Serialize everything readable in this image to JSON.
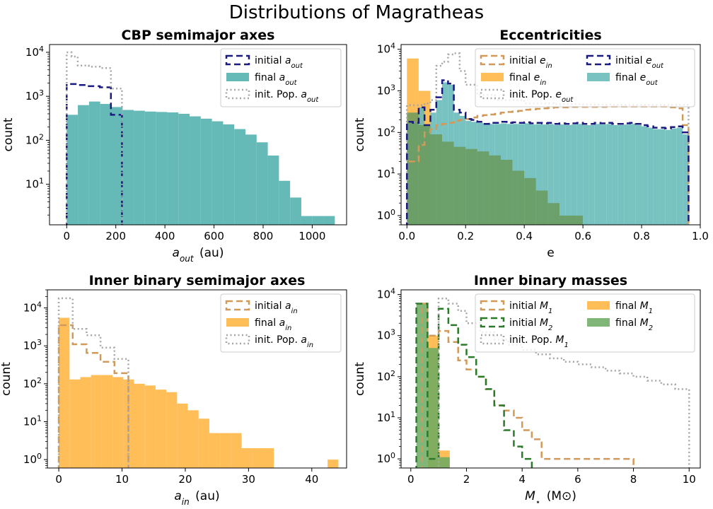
{
  "figure": {
    "suptitle": "Distributions of Magratheas"
  },
  "chart_data": [
    {
      "type": "histogram",
      "title": "CBP semimajor axes",
      "xlabel": "a_out (au)",
      "ylabel": "count",
      "yscale": "log",
      "xlim": [
        -70,
        1140
      ],
      "ylim": [
        1.2,
        15000
      ],
      "xticks": [
        0,
        200,
        400,
        600,
        800,
        1000
      ],
      "yticks": [
        10,
        100,
        1000,
        10000
      ],
      "legend_loc": "upper right",
      "legend_cols": 1,
      "series": [
        {
          "name": "initial a_out",
          "style": "step",
          "color": "#1a1a80",
          "dash": "dashed",
          "edges": [
            0,
            45,
            90,
            135,
            180,
            225
          ],
          "counts": [
            1900,
            1800,
            1700,
            1600,
            380
          ]
        },
        {
          "name": "final a_out",
          "style": "bar",
          "color": "#4aaeac",
          "edges": [
            0,
            45.5,
            91,
            136.5,
            182,
            227.5,
            273,
            318.5,
            364,
            409.5,
            455,
            500.5,
            546,
            591.5,
            637,
            682.5,
            728,
            773.5,
            819,
            864.5,
            910,
            955.5,
            1001,
            1046.5,
            1092
          ],
          "counts": [
            380,
            630,
            760,
            670,
            570,
            490,
            470,
            450,
            440,
            430,
            400,
            350,
            310,
            270,
            230,
            180,
            135,
            90,
            45,
            12,
            5,
            1.9,
            1.9,
            1.9
          ]
        },
        {
          "name": "init. Pop. a_out",
          "style": "step",
          "color": "#a6a6a6",
          "dash": "dotted",
          "edges": [
            0,
            20,
            45,
            90,
            135,
            180,
            225
          ],
          "counts": [
            10000,
            8000,
            5000,
            4700,
            4400,
            1500
          ]
        }
      ]
    },
    {
      "type": "histogram",
      "title": "Eccentricities",
      "xlabel": "e",
      "ylabel": "count",
      "yscale": "log",
      "xlim": [
        -0.02,
        1.0
      ],
      "ylim": [
        0.6,
        13000
      ],
      "xticks": [
        0.0,
        0.2,
        0.4,
        0.6,
        0.8,
        1.0
      ],
      "yticks": [
        1,
        10,
        100,
        1000,
        10000
      ],
      "legend_loc": "upper right",
      "legend_cols": 2,
      "series": [
        {
          "name": "initial e_in",
          "style": "step",
          "color": "#d19a5a",
          "dash": "dashed",
          "edges": [
            0.0,
            0.02,
            0.04,
            0.06,
            0.08,
            0.1,
            0.12,
            0.14,
            0.16,
            0.18,
            0.2,
            0.22,
            0.24,
            0.26,
            0.28,
            0.3,
            0.32,
            0.34,
            0.36,
            0.38,
            0.4,
            0.42,
            0.44,
            0.46,
            0.48,
            0.5,
            0.52,
            0.54,
            0.56,
            0.58,
            0.6,
            0.62,
            0.64,
            0.66,
            0.68,
            0.7,
            0.72,
            0.74,
            0.76,
            0.78,
            0.8,
            0.82,
            0.84,
            0.86,
            0.88,
            0.9,
            0.92,
            0.94,
            0.96
          ],
          "counts": [
            20,
            20,
            50,
            100,
            120,
            150,
            160,
            170,
            190,
            200,
            210,
            230,
            250,
            260,
            270,
            280,
            300,
            310,
            320,
            330,
            350,
            360,
            370,
            380,
            390,
            400,
            400,
            400,
            410,
            410,
            410,
            410,
            410,
            410,
            420,
            420,
            420,
            420,
            420,
            420,
            420,
            420,
            420,
            420,
            420,
            400,
            380,
            150
          ]
        },
        {
          "name": "final e_in",
          "style": "bar",
          "color": "#ffb33a",
          "edges": [
            0.0,
            0.04,
            0.08
          ],
          "counts": [
            6000,
            1000
          ]
        },
        {
          "name": "init. Pop. e_out",
          "style": "step",
          "color": "#a6a6a6",
          "dash": "dotted",
          "edges": [
            0.0,
            0.02,
            0.04,
            0.06,
            0.08,
            0.1,
            0.12,
            0.14,
            0.16,
            0.18,
            0.2,
            0.24,
            0.3,
            0.4,
            0.5,
            0.6,
            0.7,
            0.8,
            0.9,
            0.96
          ],
          "counts": [
            450,
            450,
            450,
            500,
            600,
            4000,
            5000,
            7500,
            8000,
            3000,
            1400,
            800,
            600,
            500,
            480,
            470,
            460,
            460,
            460
          ]
        },
        {
          "name": "initial e_out",
          "style": "step",
          "color": "#1a1a80",
          "dash": "dashed",
          "edges": [
            0.0,
            0.02,
            0.04,
            0.06,
            0.08,
            0.1,
            0.12,
            0.14,
            0.16,
            0.18,
            0.2,
            0.22,
            0.24,
            0.26,
            0.28,
            0.3,
            0.32,
            0.34,
            0.36,
            0.38,
            0.4,
            0.42,
            0.44,
            0.46,
            0.48,
            0.5,
            0.52,
            0.54,
            0.56,
            0.58,
            0.6,
            0.62,
            0.64,
            0.66,
            0.68,
            0.7,
            0.72,
            0.74,
            0.76,
            0.78,
            0.8,
            0.82,
            0.84,
            0.86,
            0.88,
            0.9,
            0.92,
            0.94,
            0.96
          ],
          "counts": [
            180,
            170,
            400,
            150,
            350,
            700,
            1800,
            1500,
            350,
            300,
            210,
            200,
            180,
            160,
            170,
            170,
            180,
            170,
            175,
            170,
            175,
            165,
            170,
            165,
            170,
            160,
            165,
            160,
            165,
            170,
            160,
            160,
            170,
            165,
            170,
            160,
            160,
            165,
            170,
            160,
            150,
            140,
            130,
            130,
            125,
            135,
            140,
            100
          ]
        },
        {
          "name": "final e_out",
          "style": "bar",
          "color": "#60b8b6",
          "edges": [
            0.0,
            0.02,
            0.04,
            0.06,
            0.08,
            0.1,
            0.12,
            0.14,
            0.16,
            0.18,
            0.2,
            0.22,
            0.24,
            0.26,
            0.28,
            0.3,
            0.32,
            0.34,
            0.36,
            0.38,
            0.4,
            0.42,
            0.44,
            0.46,
            0.48,
            0.5,
            0.52,
            0.54,
            0.56,
            0.58,
            0.6,
            0.62,
            0.64,
            0.66,
            0.68,
            0.7,
            0.72,
            0.74,
            0.76,
            0.78,
            0.8,
            0.82,
            0.84,
            0.86,
            0.88,
            0.9,
            0.92,
            0.94,
            0.96
          ],
          "counts": [
            170,
            170,
            400,
            140,
            300,
            600,
            1600,
            1400,
            300,
            250,
            190,
            180,
            170,
            160,
            160,
            160,
            165,
            160,
            160,
            160,
            165,
            155,
            160,
            155,
            160,
            150,
            155,
            150,
            155,
            160,
            150,
            150,
            160,
            155,
            160,
            150,
            150,
            155,
            160,
            150,
            140,
            130,
            120,
            120,
            115,
            125,
            130,
            90
          ]
        },
        {
          "name": "",
          "style": "bar",
          "color": "#6a9a5c",
          "edges": [
            0.0,
            0.04,
            0.08,
            0.12,
            0.16,
            0.2,
            0.24,
            0.28,
            0.32,
            0.36,
            0.4,
            0.44,
            0.48,
            0.52,
            0.56,
            0.6
          ],
          "counts": [
            300,
            150,
            90,
            60,
            45,
            40,
            35,
            28,
            22,
            12,
            8,
            4,
            2,
            1,
            1
          ]
        }
      ]
    },
    {
      "type": "histogram",
      "title": "Inner binary semimajor axes",
      "xlabel": "a_in (au)",
      "ylabel": "count",
      "yscale": "log",
      "xlim": [
        -1.8,
        45.5
      ],
      "ylim": [
        0.6,
        30000
      ],
      "xticks": [
        0,
        10,
        20,
        30,
        40
      ],
      "yticks": [
        1,
        10,
        100,
        1000,
        10000
      ],
      "legend_loc": "upper right",
      "legend_cols": 1,
      "series": [
        {
          "name": "initial a_in",
          "style": "step",
          "color": "#d19a5a",
          "dash": "dashed",
          "edges": [
            0,
            2.2,
            4.4,
            6.6,
            8.8,
            11
          ],
          "counts": [
            3500,
            1100,
            650,
            380,
            190
          ]
        },
        {
          "name": "final a_in",
          "style": "bar",
          "color": "#ffb33a",
          "edges": [
            0,
            1.7,
            3.4,
            5.1,
            6.8,
            8.5,
            10.2,
            11.9,
            13.6,
            15.3,
            17,
            18.7,
            20.4,
            22.1,
            23.8,
            25.5,
            27.2,
            28.9,
            30.6,
            32.3,
            34,
            35.7,
            37.4,
            39.1,
            40.8,
            42.5,
            44.2
          ],
          "counts": [
            5500,
            130,
            150,
            170,
            170,
            150,
            130,
            100,
            90,
            70,
            60,
            30,
            20,
            12,
            5,
            5,
            5,
            2,
            2,
            2,
            0,
            0,
            0,
            0,
            0,
            1
          ]
        },
        {
          "name": "init. Pop. a_in",
          "style": "step",
          "color": "#a6a6a6",
          "dash": "dotted",
          "edges": [
            0,
            2.2,
            4.4,
            6.6,
            8.8,
            11
          ],
          "counts": [
            18000,
            2800,
            1900,
            900,
            450
          ]
        }
      ]
    },
    {
      "type": "histogram",
      "title": "Inner binary masses",
      "xlabel": "M_star (M_sun)",
      "ylabel": "count",
      "yscale": "log",
      "xlim": [
        -0.35,
        10.4
      ],
      "ylim": [
        0.6,
        13000
      ],
      "xticks": [
        0,
        2,
        4,
        6,
        8,
        10
      ],
      "yticks": [
        1,
        10,
        100,
        1000,
        10000
      ],
      "legend_loc": "upper right",
      "legend_cols": 2,
      "series": [
        {
          "name": "initial M_1",
          "style": "step",
          "color": "#d19a5a",
          "dash": "dashed",
          "edges": [
            0.4,
            0.6,
            1.0,
            1.35,
            1.7,
            2.0,
            2.35,
            2.7,
            3.0,
            3.35,
            3.7,
            4.0,
            4.35,
            4.7,
            5.0,
            5.35,
            5.7,
            6.0,
            6.35,
            6.7,
            7.0,
            7.35,
            7.7,
            8.0
          ],
          "counts": [
            6000,
            1000,
            1300,
            700,
            250,
            150,
            100,
            50,
            20,
            15,
            10,
            5,
            3,
            1,
            1,
            1,
            1,
            1,
            1,
            1,
            1,
            1,
            1
          ]
        },
        {
          "name": "initial M_2",
          "style": "step",
          "color": "#2a7a2a",
          "dash": "dashed",
          "edges": [
            0.2,
            0.6,
            1.0,
            1.35,
            1.7,
            2.0,
            2.35,
            2.7,
            3.0,
            3.35,
            3.7,
            4.0,
            4.35,
            4.7
          ],
          "counts": [
            6000,
            1,
            4500,
            1800,
            600,
            300,
            100,
            50,
            20,
            5,
            2,
            1,
            0
          ]
        },
        {
          "name": "init. Pop. M_1",
          "style": "step",
          "color": "#a6a6a6",
          "dash": "dotted",
          "edges": [
            1.0,
            1.35,
            1.7,
            2.0,
            2.5,
            3.0,
            3.5,
            4.0,
            4.5,
            5.0,
            5.5,
            6.0,
            6.5,
            7.0,
            7.5,
            8.0,
            8.5,
            9.0,
            9.5,
            10.0
          ],
          "counts": [
            8000,
            6000,
            4000,
            2000,
            1200,
            800,
            600,
            450,
            350,
            280,
            230,
            200,
            170,
            140,
            120,
            100,
            80,
            65,
            50
          ]
        },
        {
          "name": "final M_1",
          "style": "bar",
          "color": "#ffb33a",
          "edges": [
            0.6,
            1.0,
            1.4
          ],
          "counts": [
            1000,
            1.6
          ]
        },
        {
          "name": "final M_2",
          "style": "bar",
          "color": "#6aaa60",
          "edges": [
            0.2,
            0.6,
            1.0,
            1.4
          ],
          "counts": [
            6000,
            500,
            1.1
          ]
        }
      ]
    }
  ]
}
